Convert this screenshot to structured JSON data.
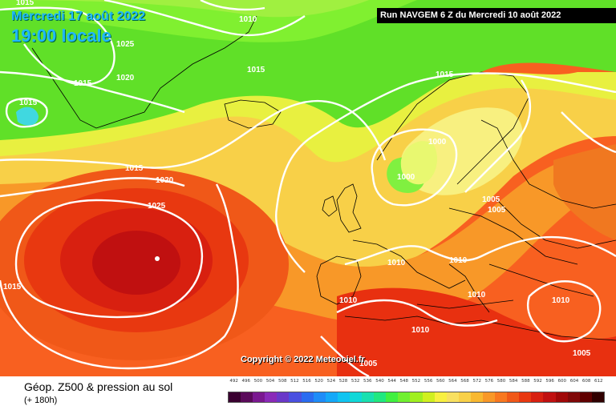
{
  "header": {
    "date": "Mercredi 17 août 2022",
    "time": "19:00 locale",
    "run": "Run NAVGEM 6 Z du Mercredi 10 août 2022"
  },
  "copyright": "Copyright © 2022 Meteociel.fr",
  "footer": {
    "title": "Géop. Z500 & pression au sol",
    "subtitle": "(+ 180h)"
  },
  "isobar_labels": [
    "1015",
    "1010",
    "1025",
    "1020",
    "1015",
    "1015",
    "1015",
    "1015",
    "1020",
    "1025",
    "1015",
    "1000",
    "1000",
    "1015",
    "1005",
    "1005",
    "1010",
    "1010",
    "1010",
    "1010",
    "1010",
    "1010",
    "1005",
    "1005"
  ],
  "scale": {
    "ticks": [
      "492",
      "496",
      "500",
      "504",
      "508",
      "512",
      "516",
      "520",
      "524",
      "528",
      "532",
      "536",
      "540",
      "544",
      "548",
      "552",
      "556",
      "560",
      "564",
      "568",
      "572",
      "576",
      "580",
      "584",
      "588",
      "592",
      "596",
      "600",
      "604",
      "608",
      "612"
    ],
    "colors": [
      "#3a0030",
      "#5a0a5a",
      "#7a1890",
      "#8a2ab8",
      "#6a38c8",
      "#4a50e0",
      "#2a6cf0",
      "#1e8cf8",
      "#14a8f8",
      "#10c4f0",
      "#10d8d8",
      "#18e0b0",
      "#20e880",
      "#40f040",
      "#70f030",
      "#a0f020",
      "#d0f020",
      "#f8f040",
      "#f8e060",
      "#f8d048",
      "#f8b830",
      "#f89828",
      "#f87820",
      "#f05818",
      "#e83810",
      "#d82010",
      "#c01010",
      "#a00808",
      "#800808",
      "#600000",
      "#300000"
    ]
  }
}
